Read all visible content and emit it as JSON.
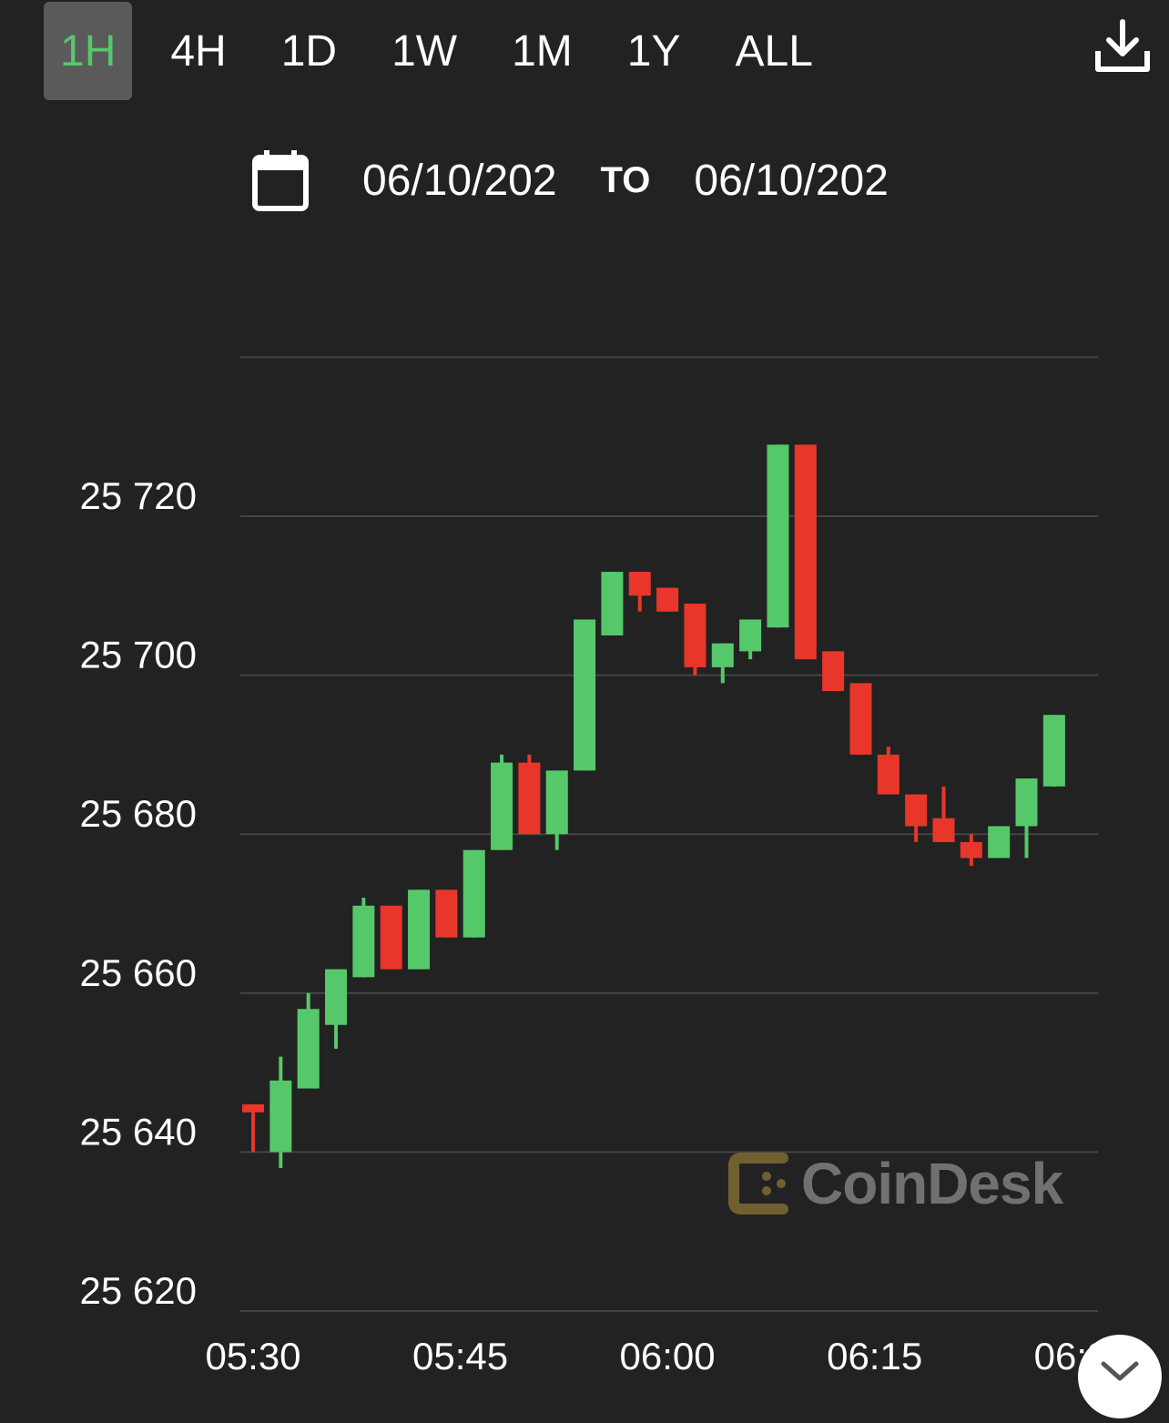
{
  "tabs": [
    {
      "label": "1H",
      "active": true
    },
    {
      "label": "4H",
      "active": false
    },
    {
      "label": "1D",
      "active": false
    },
    {
      "label": "1W",
      "active": false
    },
    {
      "label": "1M",
      "active": false
    },
    {
      "label": "1Y",
      "active": false
    },
    {
      "label": "ALL",
      "active": false
    }
  ],
  "toolbar": {
    "download_icon": "download-icon"
  },
  "date_range": {
    "from": "06/10/202",
    "to_label": "TO",
    "to": "06/10/202",
    "icon": "calendar-icon"
  },
  "watermark": {
    "text": "CoinDesk"
  },
  "colors": {
    "background": "#222222",
    "up": "#55c96a",
    "down": "#e8372a",
    "grid": "#444444",
    "active_tab_bg": "#5a5a5a"
  },
  "chart_data": {
    "type": "candlestick",
    "y_ticks": [
      "25 620",
      "25 640",
      "25 660",
      "25 680",
      "25 700",
      "25 720"
    ],
    "y_tick_values": [
      25620,
      25640,
      25660,
      25680,
      25700,
      25720
    ],
    "ylim": [
      25620,
      25740
    ],
    "x_ticks": [
      "05:30",
      "05:45",
      "06:00",
      "06:15",
      "06:30"
    ],
    "x_tick_minutes": [
      0,
      15,
      30,
      45,
      60
    ],
    "xlim": [
      0,
      60
    ],
    "candles": [
      {
        "t": 0,
        "o": 25646,
        "h": 25646,
        "l": 25640,
        "c": 25645
      },
      {
        "t": 2,
        "o": 25640,
        "h": 25652,
        "l": 25638,
        "c": 25649
      },
      {
        "t": 4,
        "o": 25648,
        "h": 25660,
        "l": 25648,
        "c": 25658
      },
      {
        "t": 6,
        "o": 25656,
        "h": 25663,
        "l": 25653,
        "c": 25663
      },
      {
        "t": 8,
        "o": 25662,
        "h": 25672,
        "l": 25662,
        "c": 25671
      },
      {
        "t": 10,
        "o": 25671,
        "h": 25671,
        "l": 25663,
        "c": 25663
      },
      {
        "t": 12,
        "o": 25663,
        "h": 25673,
        "l": 25663,
        "c": 25673
      },
      {
        "t": 14,
        "o": 25673,
        "h": 25673,
        "l": 25667,
        "c": 25667
      },
      {
        "t": 16,
        "o": 25667,
        "h": 25678,
        "l": 25667,
        "c": 25678
      },
      {
        "t": 18,
        "o": 25678,
        "h": 25690,
        "l": 25678,
        "c": 25689
      },
      {
        "t": 20,
        "o": 25689,
        "h": 25690,
        "l": 25680,
        "c": 25680
      },
      {
        "t": 22,
        "o": 25680,
        "h": 25688,
        "l": 25678,
        "c": 25688
      },
      {
        "t": 24,
        "o": 25688,
        "h": 25707,
        "l": 25688,
        "c": 25707
      },
      {
        "t": 26,
        "o": 25705,
        "h": 25713,
        "l": 25705,
        "c": 25713
      },
      {
        "t": 28,
        "o": 25713,
        "h": 25713,
        "l": 25708,
        "c": 25710
      },
      {
        "t": 30,
        "o": 25711,
        "h": 25711,
        "l": 25708,
        "c": 25708
      },
      {
        "t": 32,
        "o": 25709,
        "h": 25709,
        "l": 25700,
        "c": 25701
      },
      {
        "t": 34,
        "o": 25701,
        "h": 25704,
        "l": 25699,
        "c": 25704
      },
      {
        "t": 36,
        "o": 25703,
        "h": 25707,
        "l": 25702,
        "c": 25707
      },
      {
        "t": 38,
        "o": 25706,
        "h": 25729,
        "l": 25706,
        "c": 25729
      },
      {
        "t": 40,
        "o": 25729,
        "h": 25729,
        "l": 25702,
        "c": 25702
      },
      {
        "t": 42,
        "o": 25703,
        "h": 25703,
        "l": 25698,
        "c": 25698
      },
      {
        "t": 44,
        "o": 25699,
        "h": 25699,
        "l": 25690,
        "c": 25690
      },
      {
        "t": 46,
        "o": 25690,
        "h": 25691,
        "l": 25685,
        "c": 25685
      },
      {
        "t": 48,
        "o": 25685,
        "h": 25685,
        "l": 25679,
        "c": 25681
      },
      {
        "t": 50,
        "o": 25682,
        "h": 25686,
        "l": 25679,
        "c": 25679
      },
      {
        "t": 52,
        "o": 25679,
        "h": 25680,
        "l": 25676,
        "c": 25677
      },
      {
        "t": 54,
        "o": 25677,
        "h": 25681,
        "l": 25677,
        "c": 25681
      },
      {
        "t": 56,
        "o": 25681,
        "h": 25687,
        "l": 25677,
        "c": 25687
      },
      {
        "t": 58,
        "o": 25686,
        "h": 25695,
        "l": 25686,
        "c": 25695
      }
    ]
  }
}
